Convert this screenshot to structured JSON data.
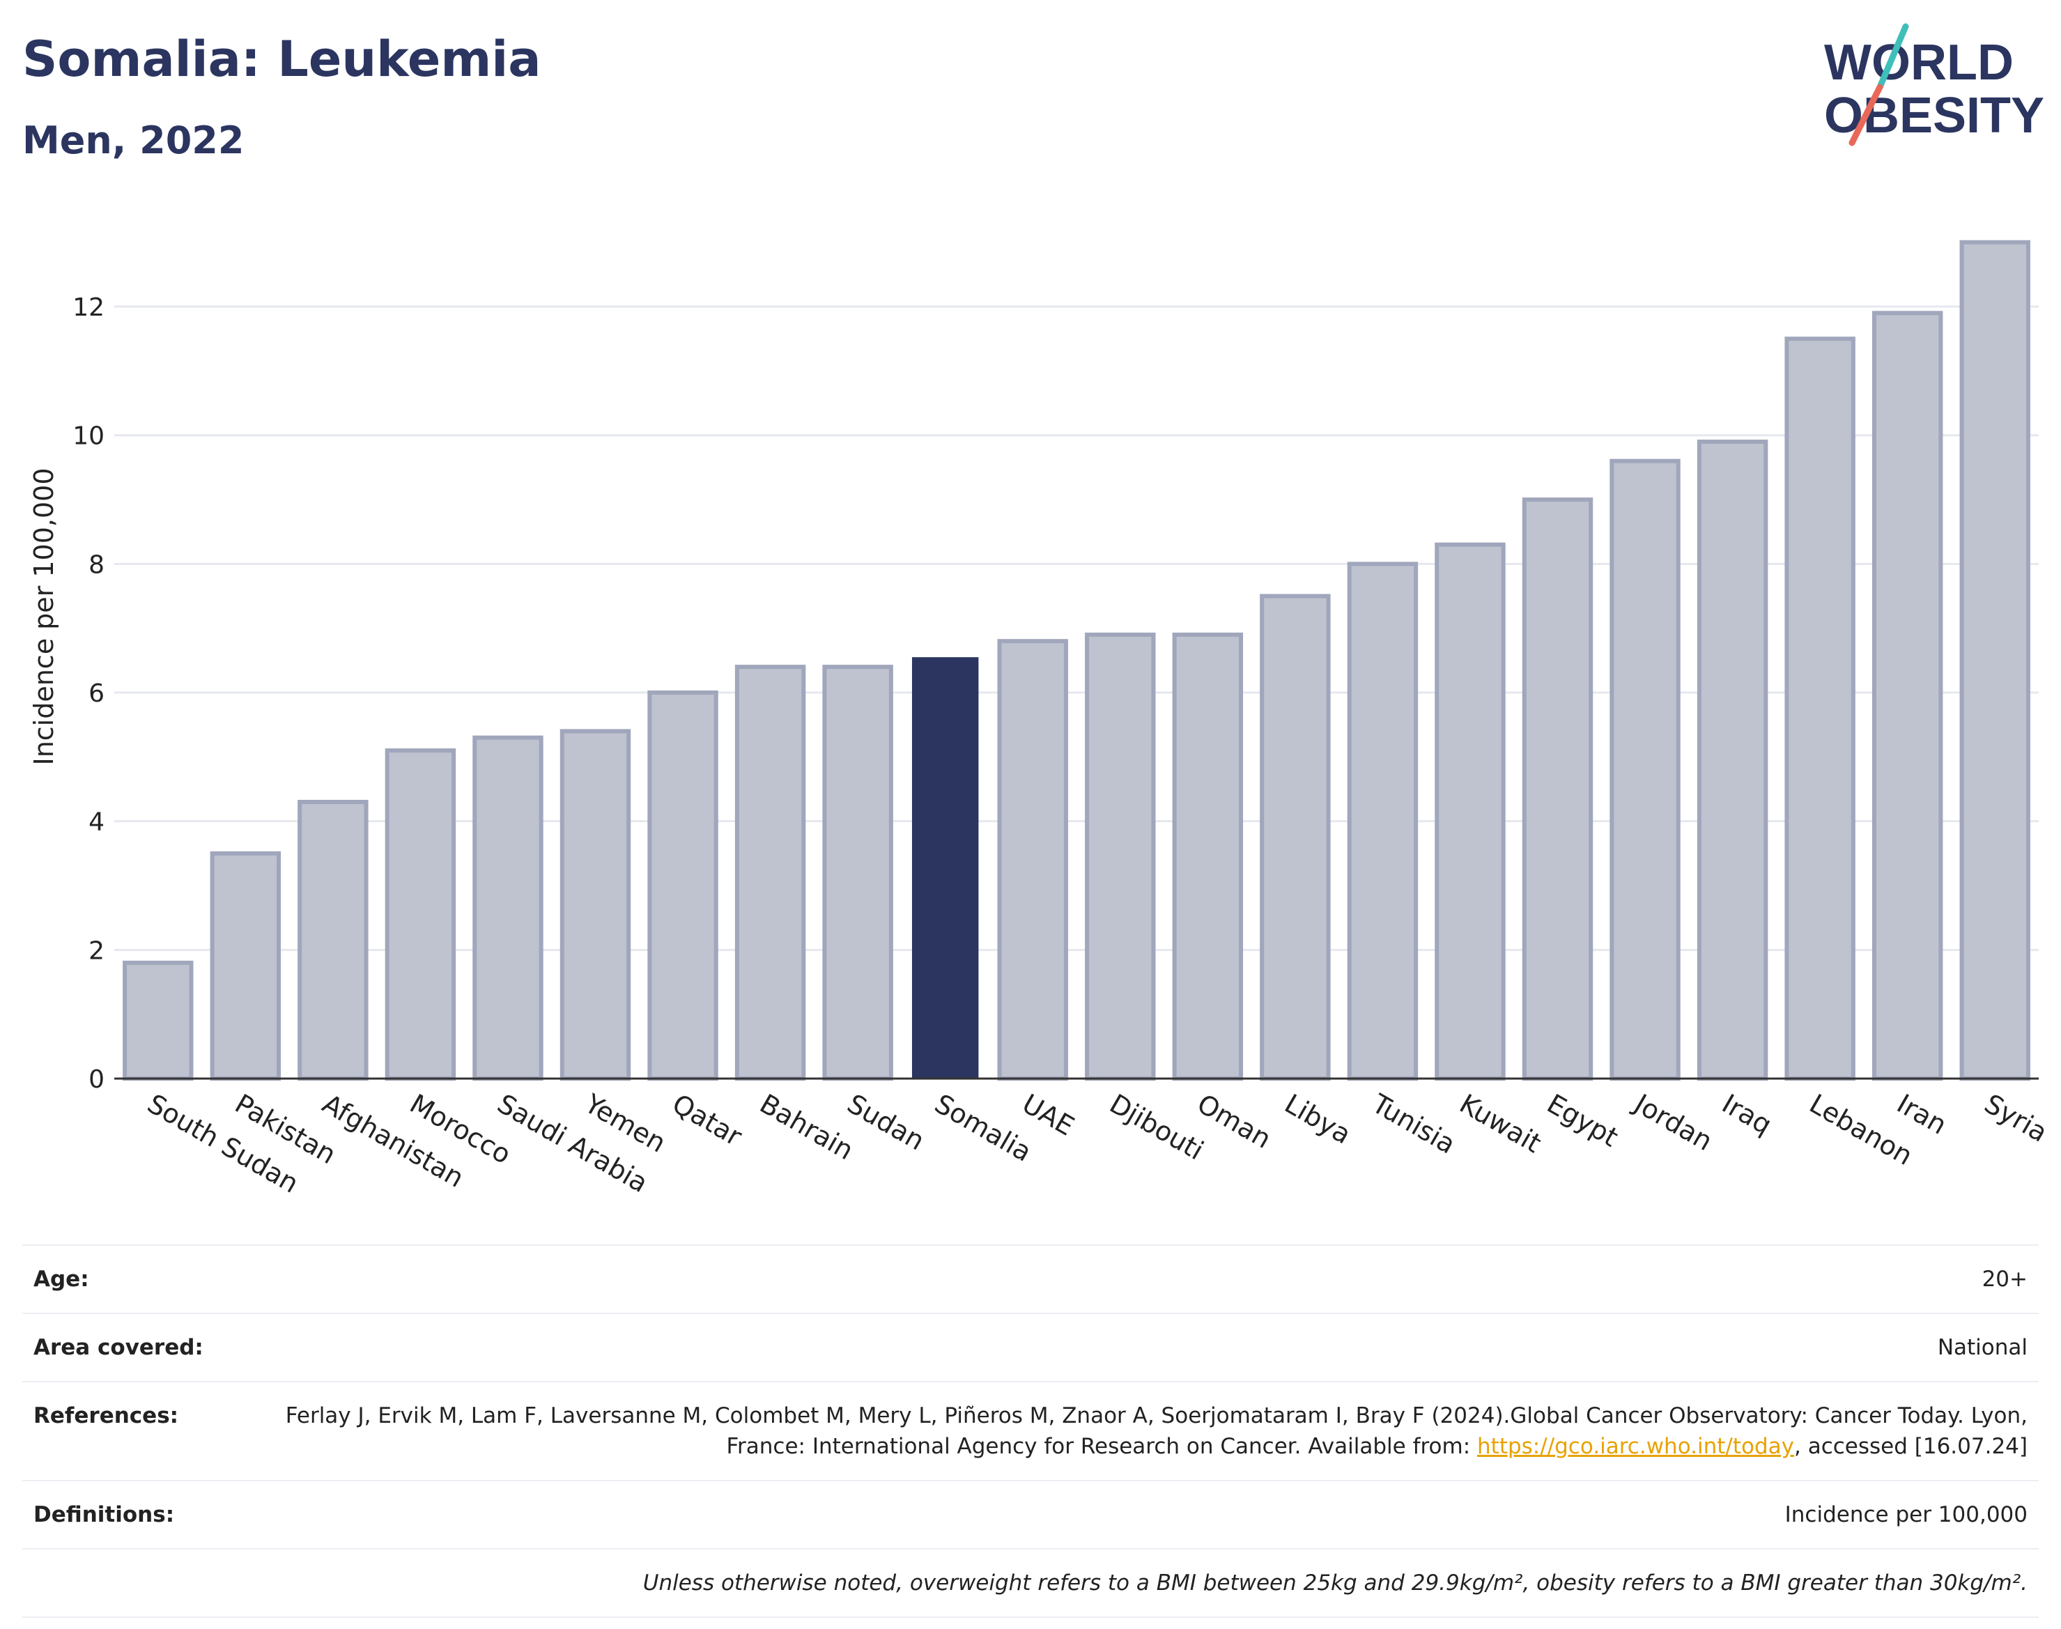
{
  "header": {
    "title": "Somalia: Leukemia",
    "subtitle": "Men, 2022"
  },
  "logo": {
    "line1": "WORLD",
    "line2": "OBESITY",
    "colors": {
      "text": "#2b3560",
      "slash_top": "#3fbfb9",
      "slash_bottom": "#e8685a"
    }
  },
  "chart_data": {
    "type": "bar",
    "categories": [
      "South Sudan",
      "Pakistan",
      "Afghanistan",
      "Morocco",
      "Saudi Arabia",
      "Yemen",
      "Qatar",
      "Bahrain",
      "Sudan",
      "Somalia",
      "UAE",
      "Djibouti",
      "Oman",
      "Libya",
      "Tunisia",
      "Kuwait",
      "Egypt",
      "Jordan",
      "Iraq",
      "Lebanon",
      "Iran",
      "Syria"
    ],
    "values": [
      1.8,
      3.5,
      4.3,
      5.1,
      5.3,
      5.4,
      6.0,
      6.4,
      6.4,
      6.55,
      6.8,
      6.9,
      6.9,
      7.5,
      8.0,
      8.3,
      9.0,
      9.6,
      9.9,
      11.5,
      11.9,
      13.0
    ],
    "highlight": "Somalia",
    "ylabel": "Incidence per 100,000",
    "ylim": [
      0,
      13.3
    ],
    "yticks": [
      0,
      2,
      4,
      6,
      8,
      10,
      12
    ],
    "grid": true,
    "colors": {
      "bar": "#bfc2cf",
      "bar_border": "#a0a6bb",
      "highlight": "#2b3560",
      "grid": "#e6e8ef"
    }
  },
  "meta": {
    "age_label": "Age:",
    "age_value": "20+",
    "area_label": "Area covered:",
    "area_value": "National",
    "references_label": "References:",
    "references_text_1": "Ferlay J, Ervik M, Lam F, Laversanne M, Colombet M, Mery L, Piñeros M, Znaor A, Soerjomataram I, Bray F (2024).Global Cancer Observatory: Cancer Today. Lyon, France: International Agency for Research on Cancer. Available from:",
    "references_link": "https://gco.iarc.who.int/today",
    "references_text_2": ", accessed [16.07.24]",
    "definitions_label": "Definitions:",
    "definitions_value": "Incidence per 100,000",
    "note": "Unless otherwise noted, overweight refers to a BMI between 25kg and 29.9kg/m², obesity refers to a BMI greater than 30kg/m²."
  }
}
